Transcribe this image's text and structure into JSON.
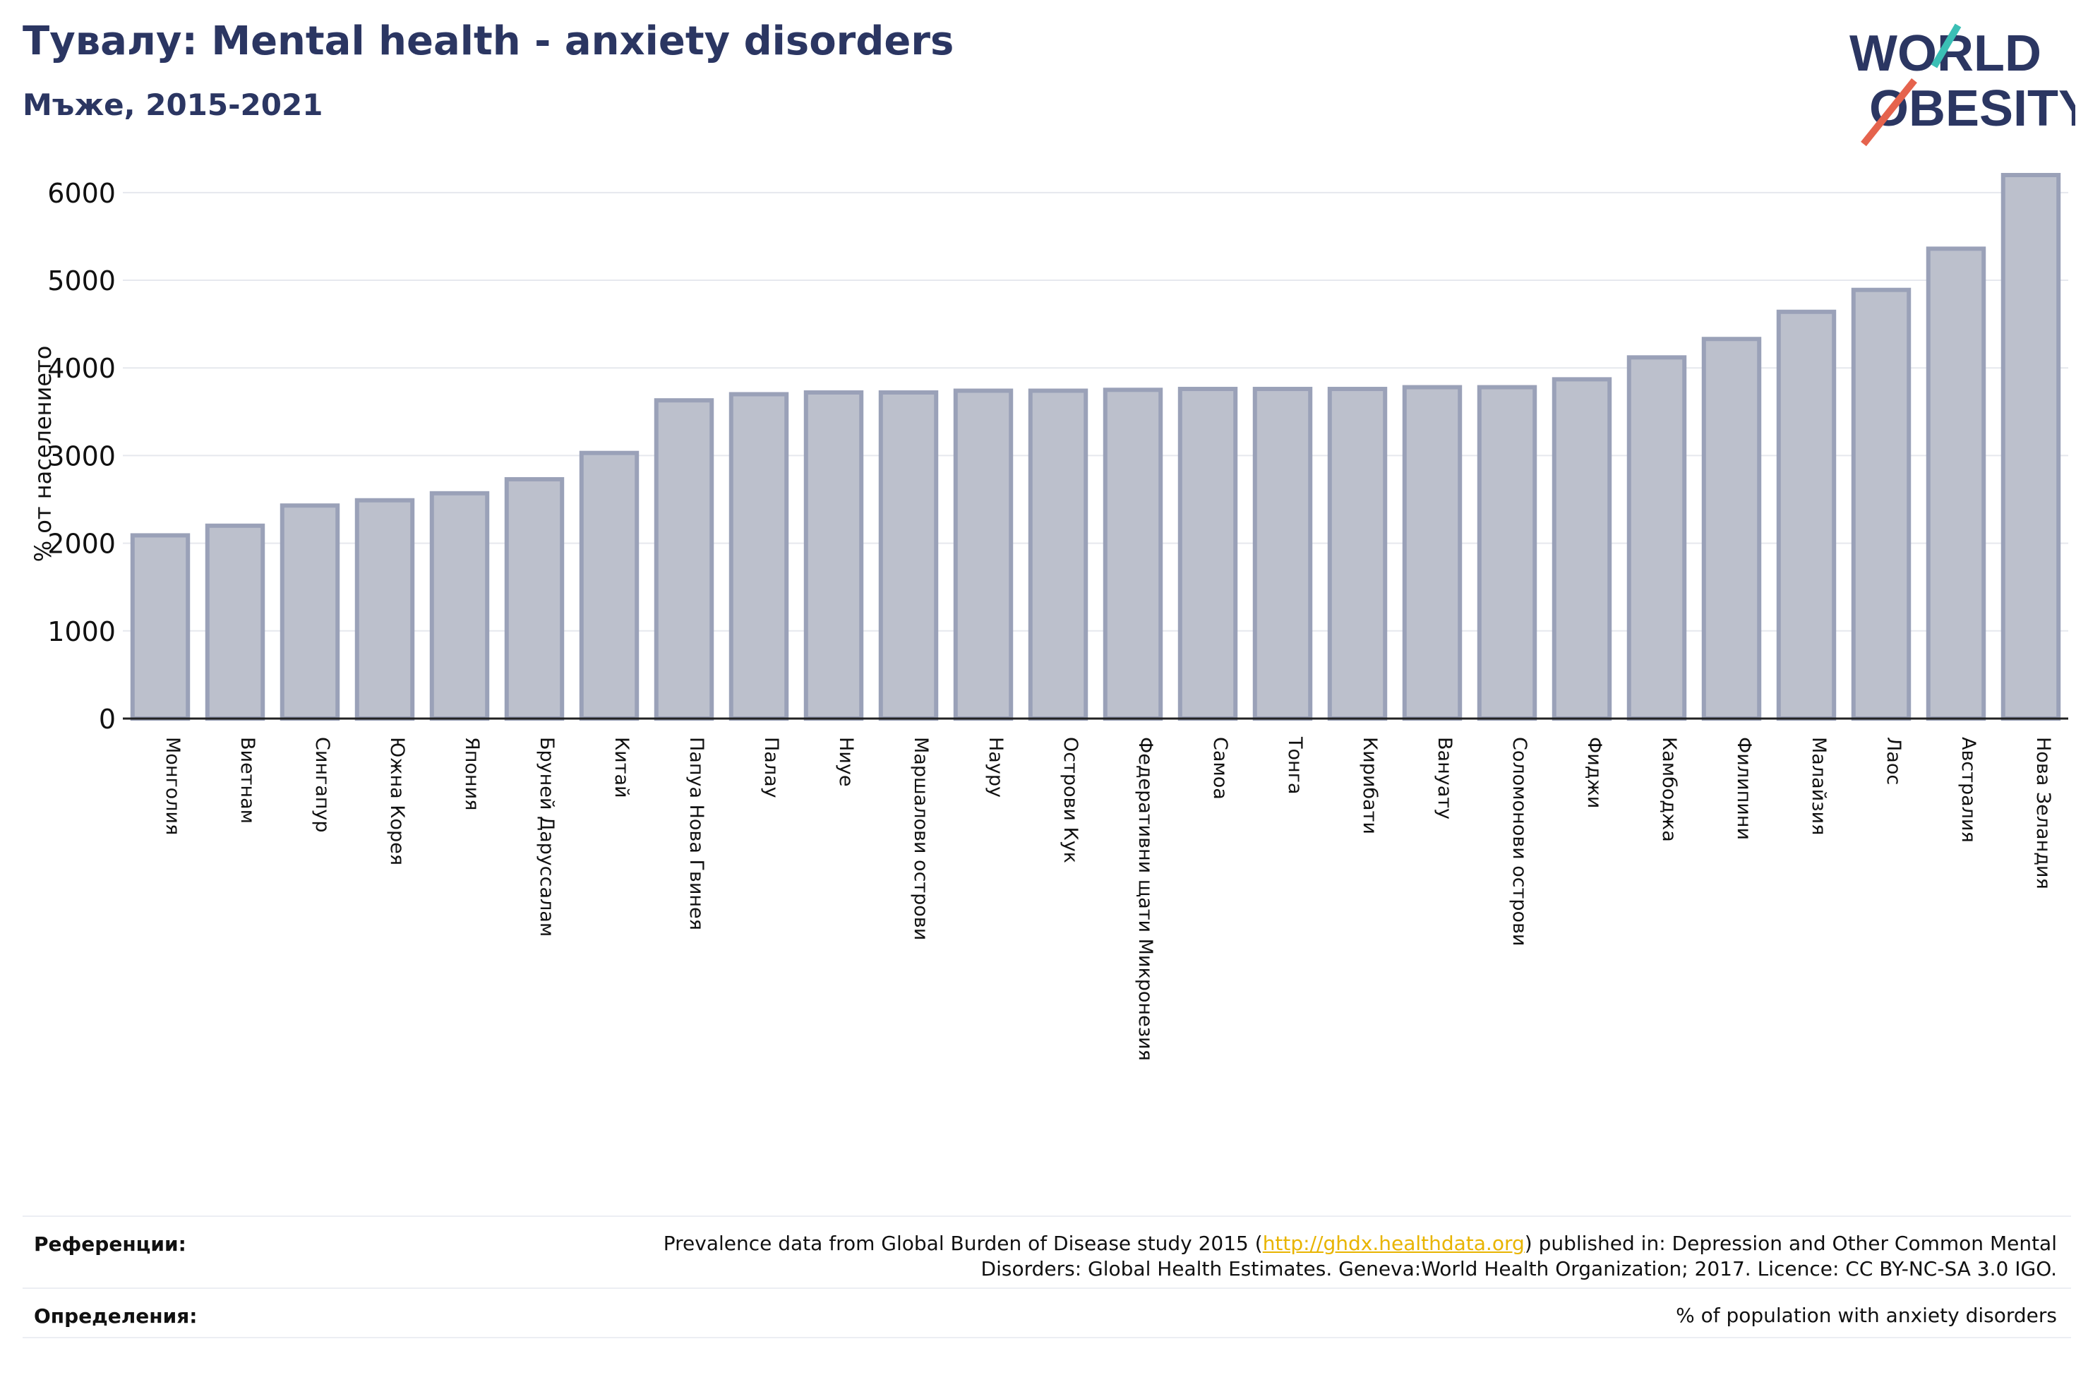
{
  "header": {
    "title": "Тувалу: Mental health - anxiety disorders",
    "subtitle": "Мъже, 2015-2021"
  },
  "logo": {
    "line1": "WORLD",
    "line2": "OBESITY",
    "accent_teal": "#3bbfb5",
    "accent_red": "#e5634d",
    "text_color": "#2b3662"
  },
  "colors": {
    "bar_fill": "#bcc0cc",
    "bar_stroke": "#9aa1b8",
    "axis": "#222222",
    "grid": "#e6e8ee"
  },
  "chart_data": {
    "type": "bar",
    "title": "",
    "xlabel": "",
    "ylabel": "% от населението",
    "ylim": [
      0,
      6200
    ],
    "yticks": [
      0,
      1000,
      2000,
      3000,
      4000,
      5000,
      6000
    ],
    "grid": true,
    "categories": [
      "Монголия",
      "Виетнам",
      "Сингапур",
      "Южна Корея",
      "Япония",
      "Бруней Даруссалам",
      "Китай",
      "Папуа Нова Гвинея",
      "Палау",
      "Ниуе",
      "Маршалови острови",
      "Науру",
      "Острови Кук",
      "Федеративни щати Микронезия",
      "Самоа",
      "Тонга",
      "Кирибати",
      "Вануату",
      "Соломонови острови",
      "Фиджи",
      "Камбоджа",
      "Филипини",
      "Малайзия",
      "Лаос",
      "Австралия",
      "Нова Зеландия"
    ],
    "values": [
      2090,
      2200,
      2430,
      2490,
      2570,
      2730,
      3030,
      3630,
      3700,
      3720,
      3720,
      3740,
      3740,
      3750,
      3760,
      3760,
      3760,
      3780,
      3780,
      3870,
      4120,
      4330,
      4640,
      4890,
      5360,
      6200
    ]
  },
  "footer": {
    "references_label": "Референции:",
    "references_pre": "Prevalence data from Global Burden of Disease study 2015 (",
    "references_link": "http://ghdx.healthdata.org",
    "references_post": ") published in: Depression and Other Common Mental",
    "references_line2": "Disorders: Global Health Estimates. Geneva:World Health Organization; 2017. Licence: CC BY-NC-SA 3.0 IGO.",
    "definitions_label": "Определения:",
    "definitions_text": "% of population with anxiety disorders"
  }
}
